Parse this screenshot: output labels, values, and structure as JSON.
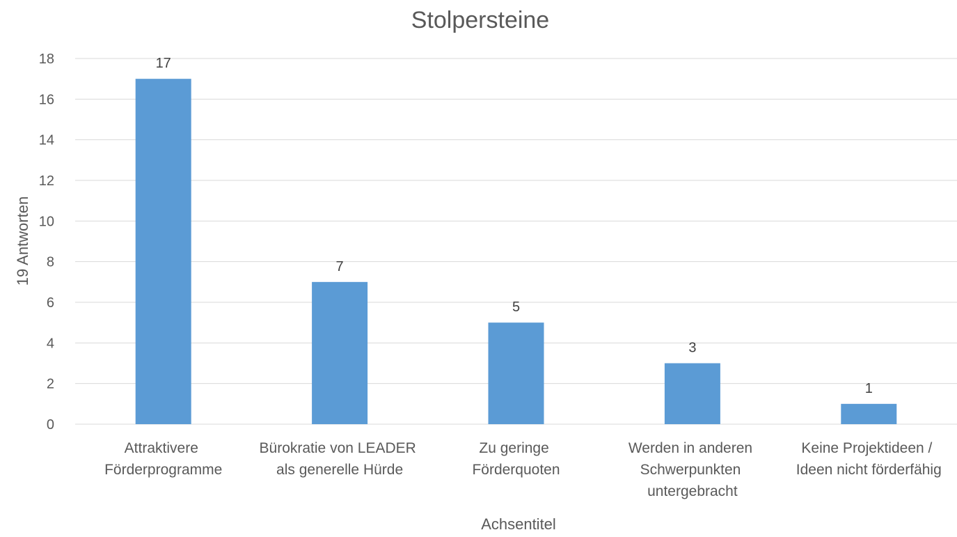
{
  "chart_data": {
    "type": "bar",
    "title": "Stolpersteine",
    "x_label": "Achsentitel",
    "y_label": "19 Antworten",
    "categories": [
      "Attraktivere Förderprogramme",
      "Bürokratie von LEADER als generelle Hürde",
      "Zu geringe Förderquoten",
      "Werden in anderen Schwerpunkten untergebracht",
      "Keine Projektideen / Ideen nicht förderfähig"
    ],
    "values": [
      17,
      7,
      5,
      3,
      1
    ],
    "color": "#5b9bd5",
    "ylim": [
      0,
      18
    ],
    "yticks": [
      0,
      2,
      4,
      6,
      8,
      10,
      12,
      14,
      16,
      18
    ],
    "grid": true
  }
}
